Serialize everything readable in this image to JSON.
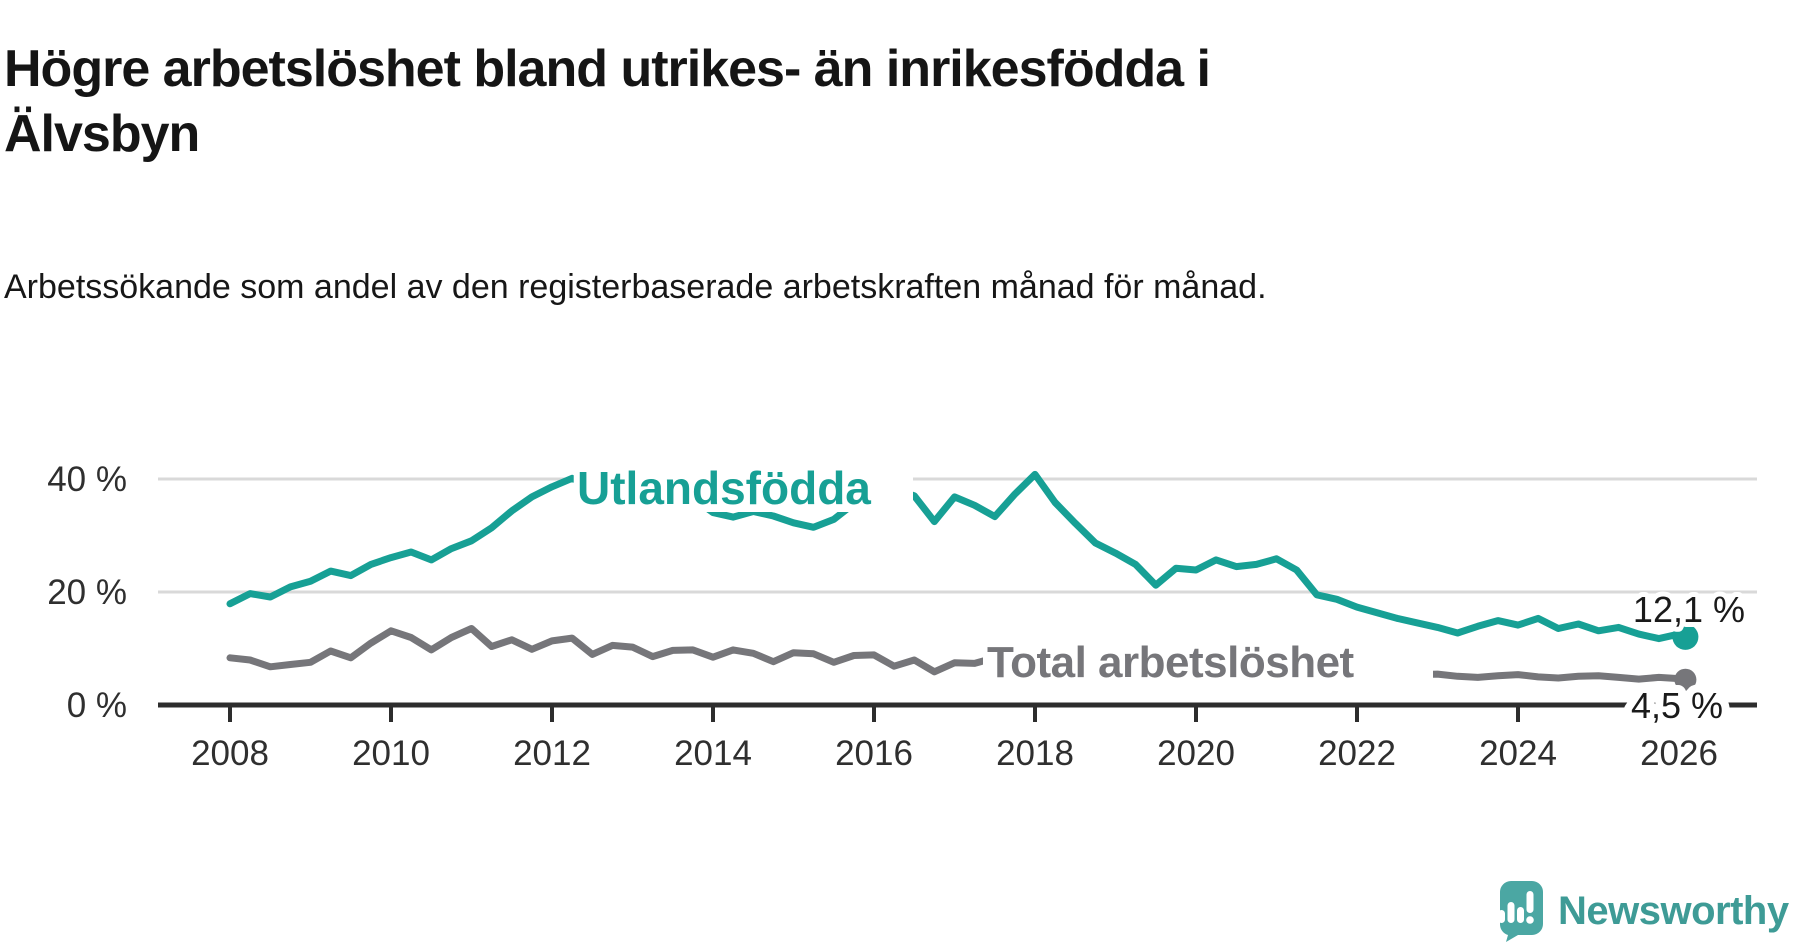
{
  "header": {
    "title": "Högre arbetslöshet bland utrikes- än inrikesfödda i Älvsbyn",
    "subtitle": "Arbetssökande som andel av den registerbaserade arbetskraften månad för månad."
  },
  "branding": {
    "logo_text": "Newsworthy",
    "logo_icon": "speech-bubble-bar-chart-exclamation",
    "logo_icon_color": "#4BA7A3",
    "logo_text_color": "#3E9B96"
  },
  "chart_data": {
    "type": "line",
    "x_unit": "decimal_year",
    "xlim": [
      2007.1,
      2027.0
    ],
    "ylim": [
      0,
      44
    ],
    "grid": "horizontal",
    "legend_position": "inline-labels",
    "ytick_labels": [
      "0 %",
      "20 %",
      "40 %"
    ],
    "yticks": [
      0,
      20,
      40
    ],
    "xtick_labels": [
      "2008",
      "2010",
      "2012",
      "2014",
      "2016",
      "2018",
      "2020",
      "2022",
      "2024",
      "2026"
    ],
    "xticks": [
      2008,
      2010,
      2012,
      2014,
      2016,
      2018,
      2020,
      2022,
      2024,
      2026
    ],
    "x": [
      2008.0,
      2008.25,
      2008.5,
      2008.75,
      2009.0,
      2009.25,
      2009.5,
      2009.75,
      2010.0,
      2010.25,
      2010.5,
      2010.75,
      2011.0,
      2011.25,
      2011.5,
      2011.75,
      2012.0,
      2012.25,
      2012.5,
      2012.75,
      2013.0,
      2013.25,
      2013.5,
      2013.75,
      2014.0,
      2014.25,
      2014.5,
      2014.75,
      2015.0,
      2015.25,
      2015.5,
      2015.75,
      2016.0,
      2016.25,
      2016.5,
      2016.75,
      2017.0,
      2017.25,
      2017.5,
      2017.75,
      2018.0,
      2018.25,
      2018.5,
      2018.75,
      2019.0,
      2019.25,
      2019.5,
      2019.75,
      2020.0,
      2020.25,
      2020.5,
      2020.75,
      2021.0,
      2021.25,
      2021.5,
      2021.75,
      2022.0,
      2022.25,
      2022.5,
      2022.75,
      2023.0,
      2023.25,
      2023.5,
      2023.75,
      2024.0,
      2024.25,
      2024.5,
      2024.75,
      2025.0,
      2025.25,
      2025.5,
      2025.75,
      2026.0,
      2026.08
    ],
    "series": [
      {
        "name": "Utlandsfödda",
        "color": "#17A095",
        "end_label": "12,1 %",
        "end_value": 12.1,
        "values": [
          18.0,
          19.8,
          19.2,
          21.0,
          22.0,
          23.8,
          23.0,
          25.0,
          26.2,
          27.2,
          25.8,
          27.8,
          29.2,
          31.5,
          34.5,
          37.0,
          38.8,
          40.3,
          38.8,
          39.8,
          38.2,
          39.6,
          38.4,
          36.8,
          34.2,
          33.4,
          34.4,
          33.6,
          32.4,
          31.6,
          33.0,
          35.8,
          37.6,
          38.4,
          37.2,
          32.6,
          37.0,
          35.5,
          33.5,
          37.5,
          41.0,
          36.0,
          32.3,
          28.8,
          27.0,
          25.0,
          21.3,
          24.3,
          24.0,
          25.8,
          24.6,
          25.0,
          26.0,
          24.0,
          19.6,
          18.8,
          17.4,
          16.4,
          15.4,
          14.6,
          13.8,
          12.8,
          14.0,
          15.0,
          14.2,
          15.4,
          13.6,
          14.4,
          13.2,
          13.8,
          12.6,
          11.8,
          12.6,
          12.1
        ]
      },
      {
        "name": "Total arbetslöshet",
        "color": "#76767A",
        "end_label": "4,5 %",
        "end_value": 4.5,
        "values": [
          8.4,
          8.0,
          6.8,
          7.2,
          7.6,
          9.6,
          8.4,
          11.0,
          13.2,
          12.0,
          9.8,
          12.0,
          13.6,
          10.4,
          11.6,
          9.9,
          11.4,
          11.9,
          9.0,
          10.6,
          10.3,
          8.6,
          9.7,
          9.8,
          8.5,
          9.8,
          9.2,
          7.7,
          9.3,
          9.1,
          7.6,
          8.8,
          8.9,
          6.9,
          8.0,
          5.9,
          7.5,
          7.4,
          8.4,
          8.0,
          8.2,
          7.8,
          7.2,
          7.6,
          7.4,
          7.0,
          6.6,
          7.0,
          7.4,
          7.8,
          7.2,
          6.8,
          6.6,
          6.2,
          6.0,
          5.9,
          5.8,
          5.6,
          5.2,
          5.4,
          5.5,
          5.1,
          4.9,
          5.2,
          5.4,
          5.0,
          4.8,
          5.1,
          5.2,
          4.9,
          4.6,
          4.9,
          4.7,
          4.5
        ]
      }
    ],
    "colors": {
      "gridline": "#D9D9D9",
      "axis": "#2D2D2D",
      "tick_label": "#2F2F2F",
      "value_label": "#1A1A1A"
    }
  }
}
